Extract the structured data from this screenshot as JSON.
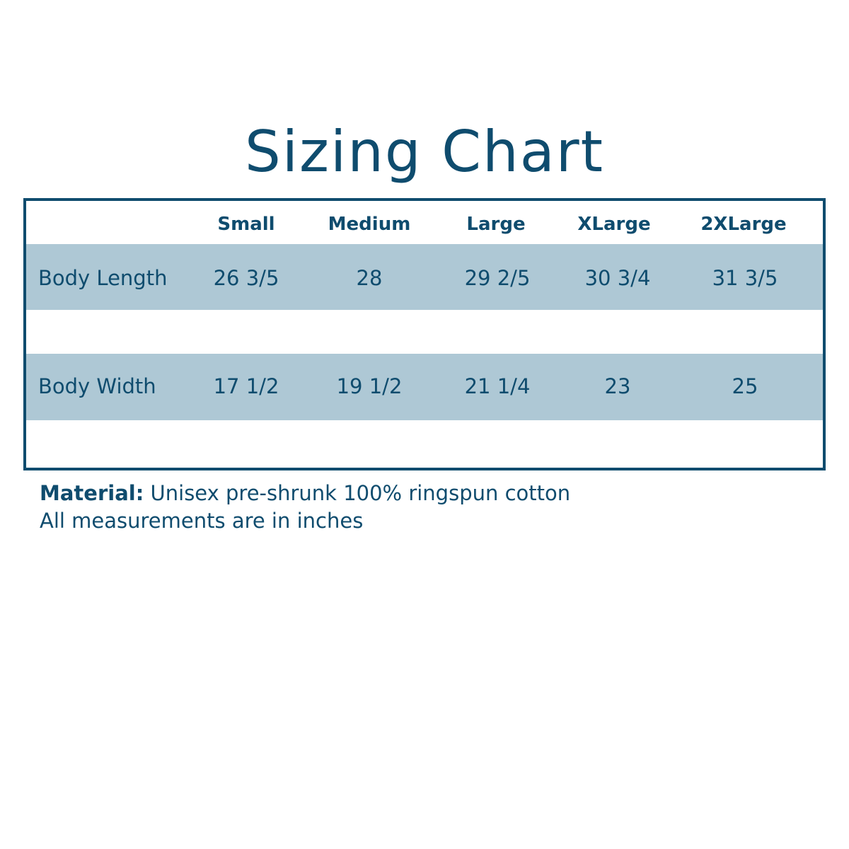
{
  "title": "Sizing Chart",
  "colors": {
    "primary": "#0f4c6e",
    "band": "#aec8d5"
  },
  "table": {
    "columns": [
      "Small",
      "Medium",
      "Large",
      "XLarge",
      "2XLarge"
    ],
    "rows": [
      {
        "label": "Body Length",
        "values": [
          "26 3/5",
          "28",
          "29 2/5",
          "30 3/4",
          "31 3/5"
        ]
      },
      {
        "label": "Body Width",
        "values": [
          "17 1/2",
          "19 1/2",
          "21 1/4",
          "23",
          "25"
        ]
      }
    ]
  },
  "footer": {
    "material_label": "Material:",
    "material_text": " Unisex pre-shrunk 100% ringspun cotton",
    "note": "All measurements are in inches"
  }
}
